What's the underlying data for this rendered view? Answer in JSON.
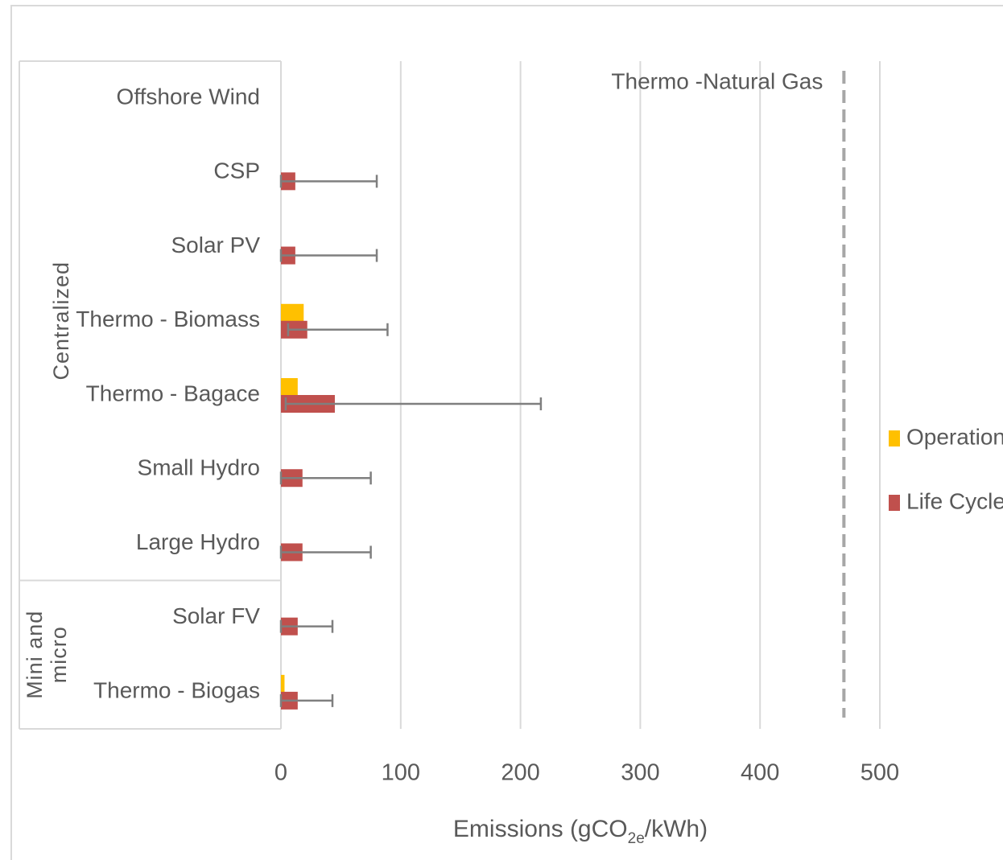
{
  "chart_data": {
    "type": "bar",
    "orientation": "horizontal",
    "categories": [
      "Offshore Wind",
      "CSP",
      "Solar PV",
      "Thermo - Biomass",
      "Thermo - Bagace",
      "Small Hydro",
      "Large Hydro",
      "Solar FV",
      "Thermo - Biogas"
    ],
    "groups": [
      {
        "label": [
          "Centralized"
        ],
        "start": 0,
        "end": 6
      },
      {
        "label": [
          "Mini and",
          "micro"
        ],
        "start": 7,
        "end": 8
      }
    ],
    "series": [
      {
        "name": "Operation",
        "color": "#ffc000",
        "values": [
          null,
          null,
          null,
          19,
          14,
          null,
          null,
          null,
          3
        ]
      },
      {
        "name": "Life Cycle",
        "color": "#c0504d",
        "values": [
          null,
          12,
          12,
          22,
          45,
          18,
          18,
          14,
          14
        ],
        "error_plus": [
          null,
          68,
          68,
          67,
          172,
          57,
          57,
          29,
          29
        ],
        "error_minus": [
          null,
          12,
          12,
          16,
          41,
          18,
          18,
          14,
          14
        ],
        "error_color": "#7f7f7f"
      }
    ],
    "reference_line": {
      "value": 470,
      "label": "Thermo -Natural Gas",
      "color": "#a6a6a6"
    },
    "x_label": [
      "Emissions (gCO",
      "2e",
      "/kWh)"
    ],
    "xlim": [
      0,
      500
    ],
    "xticks": [
      0,
      100,
      200,
      300,
      400,
      500
    ],
    "grid": true,
    "legend": "right"
  }
}
